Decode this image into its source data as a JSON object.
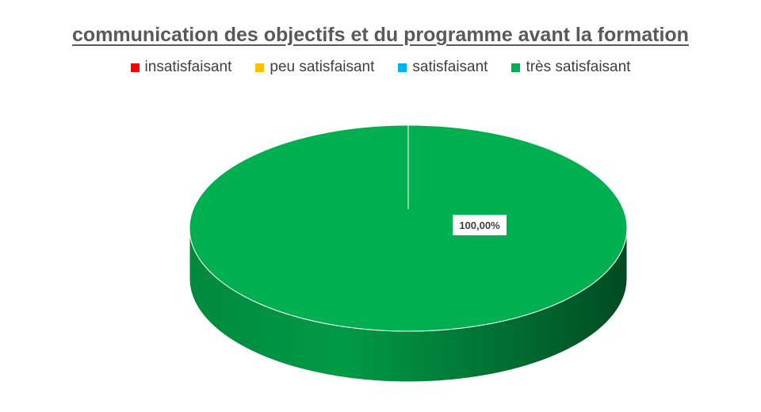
{
  "chart_data": {
    "type": "pie",
    "title": "communication des objectifs et du programme avant la formation",
    "categories": [
      "insatisfaisant",
      "peu satisfaisant",
      "satisfaisant",
      "très satisfaisant"
    ],
    "values": [
      0,
      0,
      0,
      100
    ],
    "colors": [
      "#ff0000",
      "#ffc000",
      "#00b0f0",
      "#00b050"
    ],
    "data_labels": [
      "",
      "",
      "",
      "100,00%"
    ],
    "legend_position": "top",
    "style": "3d"
  }
}
